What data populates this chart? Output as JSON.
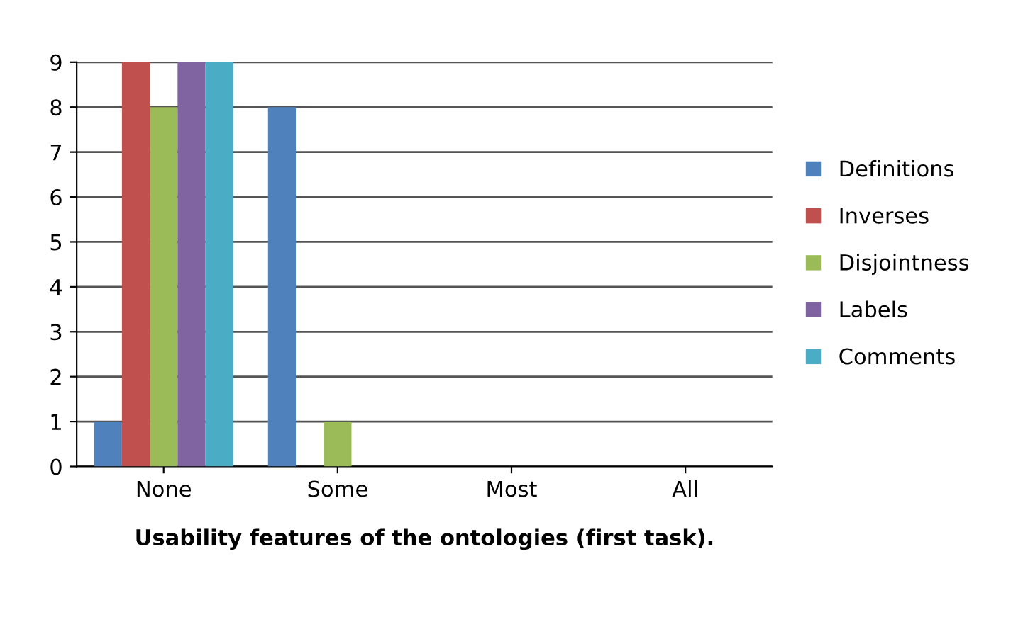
{
  "chart_data": {
    "type": "bar",
    "xlabel": "Usability features of the ontologies (first task).",
    "categories": [
      "None",
      "Some",
      "Most",
      "All"
    ],
    "series": [
      {
        "name": "Definitions",
        "color": "#4f81bd",
        "values": [
          1,
          8,
          0,
          0
        ]
      },
      {
        "name": "Inverses",
        "color": "#c0504d",
        "values": [
          9,
          0,
          0,
          0
        ]
      },
      {
        "name": "Disjointness",
        "color": "#9bbb59",
        "values": [
          8,
          1,
          0,
          0
        ]
      },
      {
        "name": "Labels",
        "color": "#8064a2",
        "values": [
          9,
          0,
          0,
          0
        ]
      },
      {
        "name": "Comments",
        "color": "#4bacc6",
        "values": [
          9,
          0,
          0,
          0
        ]
      }
    ],
    "ylim": [
      0,
      9
    ],
    "yticks": [
      0,
      1,
      2,
      3,
      4,
      5,
      6,
      7,
      8,
      9
    ],
    "grid": "y",
    "legend": "right"
  }
}
